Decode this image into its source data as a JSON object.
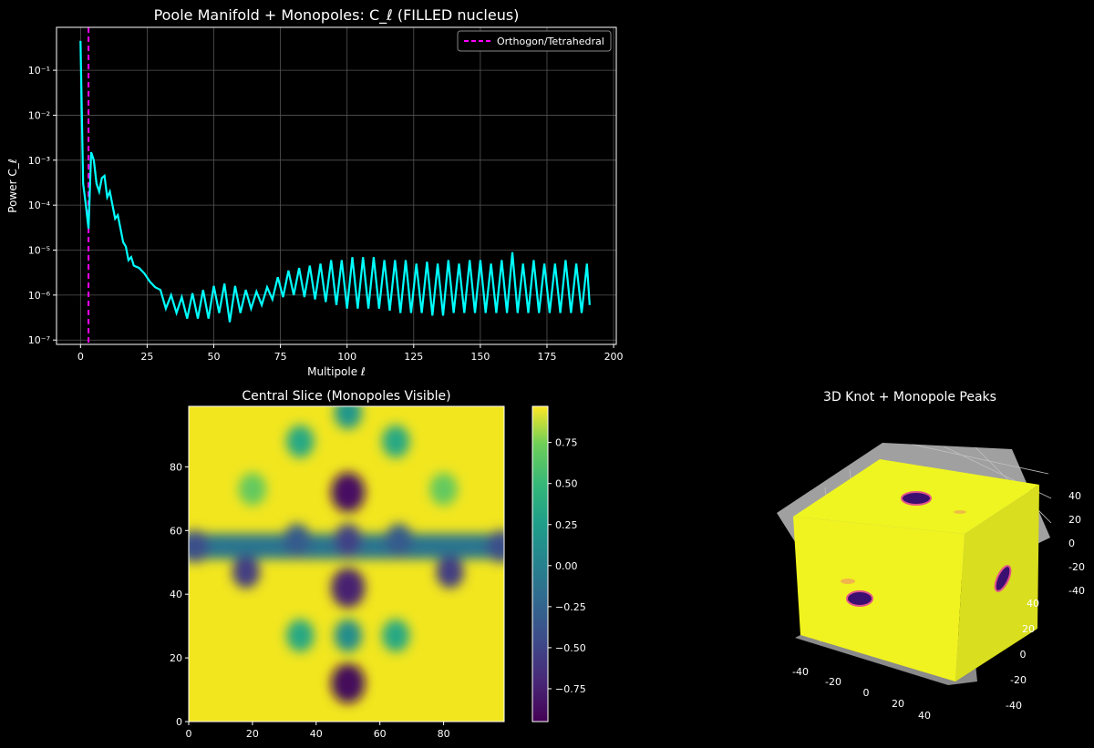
{
  "chart_data": [
    {
      "type": "line",
      "title": "Poole Manifold + Monopoles: C_ℓ   (FILLED nucleus)",
      "xlabel": "Multipole ℓ",
      "ylabel": "Power C_ℓ",
      "yscale": "log",
      "xlim": [
        -9,
        201
      ],
      "ylim": [
        8e-08,
        0.9
      ],
      "xticks": [
        0,
        25,
        50,
        75,
        100,
        125,
        150,
        175,
        200
      ],
      "yticks": [
        1e-07,
        1e-06,
        1e-05,
        0.0001,
        0.001,
        0.01,
        0.1
      ],
      "ytick_labels": [
        "10⁻⁷",
        "10⁻⁶",
        "10⁻⁵",
        "10⁻⁴",
        "10⁻³",
        "10⁻²",
        "10⁻¹"
      ],
      "grid": true,
      "legend": {
        "position": "upper-right",
        "entries": [
          "Orthogon/Tetrahedral"
        ]
      },
      "series": [
        {
          "color": "#00ffff",
          "x": [
            0,
            1,
            2,
            3,
            4,
            5,
            6,
            7,
            8,
            9,
            10,
            11,
            12,
            13,
            14,
            15,
            16,
            17,
            18,
            19,
            20,
            22,
            24,
            26,
            28,
            30,
            32,
            34,
            36,
            38,
            40,
            42,
            44,
            46,
            48,
            50,
            52,
            54,
            56,
            58,
            60,
            62,
            64,
            66,
            68,
            70,
            72,
            74,
            76,
            78,
            80,
            82,
            84,
            86,
            88,
            90,
            92,
            94,
            96,
            98,
            100,
            102,
            104,
            106,
            108,
            110,
            112,
            114,
            116,
            118,
            120,
            122,
            124,
            126,
            128,
            130,
            132,
            134,
            136,
            138,
            140,
            142,
            144,
            146,
            148,
            150,
            152,
            154,
            156,
            158,
            160,
            162,
            164,
            166,
            168,
            170,
            172,
            174,
            176,
            178,
            180,
            182,
            184,
            186,
            188,
            190,
            191
          ],
          "y": [
            0.45,
            0.0003,
            0.0001,
            3e-05,
            0.0015,
            0.001,
            0.0003,
            0.0002,
            0.0004,
            0.00045,
            0.00015,
            0.0002,
            0.0001,
            5e-05,
            6e-05,
            3e-05,
            1.5e-05,
            1.2e-05,
            6e-06,
            7e-06,
            4.5e-06,
            4e-06,
            3e-06,
            2e-06,
            1.5e-06,
            1.3e-06,
            5e-07,
            1e-06,
            4e-07,
            9e-07,
            3e-07,
            1.1e-06,
            3e-07,
            1.3e-06,
            3e-07,
            1.6e-06,
            4e-07,
            1.8e-06,
            2.5e-07,
            1.6e-06,
            4e-07,
            1.3e-06,
            5e-07,
            1.2e-06,
            6e-07,
            1.5e-06,
            8e-07,
            2.5e-06,
            9e-07,
            3.5e-06,
            1e-06,
            4e-06,
            9e-07,
            4.5e-06,
            8e-07,
            5e-06,
            7e-07,
            6e-06,
            6e-07,
            6e-06,
            5e-07,
            7e-06,
            5e-07,
            7e-06,
            5e-07,
            7e-06,
            5e-07,
            6e-06,
            4.5e-07,
            6e-06,
            4e-07,
            6e-06,
            4e-07,
            5e-06,
            4e-07,
            5.5e-06,
            3.5e-07,
            5e-06,
            3.5e-07,
            6e-06,
            4e-07,
            5e-06,
            4e-07,
            6e-06,
            4e-07,
            6e-06,
            4e-07,
            5e-06,
            4e-07,
            6e-06,
            4e-07,
            9e-06,
            4e-07,
            5e-06,
            4e-07,
            6e-06,
            4e-07,
            5e-06,
            4e-07,
            5e-06,
            4e-07,
            6e-06,
            4e-07,
            5e-06,
            4e-07,
            5e-06,
            6e-07
          ]
        }
      ],
      "vline": {
        "x": 3,
        "color": "#ff00ff",
        "label": "Orthogon/Tetrahedral"
      }
    },
    {
      "type": "heatmap",
      "title": "Central Slice (Monopoles Visible)",
      "xlim": [
        0,
        99
      ],
      "ylim": [
        0,
        99
      ],
      "xticks": [
        0,
        20,
        40,
        60,
        80
      ],
      "yticks": [
        0,
        20,
        40,
        60,
        80
      ],
      "colormap": "viridis",
      "vmin": -0.95,
      "vmax": 0.97,
      "colorbar_ticks": [
        0.75,
        0.5,
        0.25,
        0.0,
        -0.25,
        -0.5,
        -0.75
      ],
      "colorbar_labels": [
        "0.75",
        "0.50",
        "0.25",
        "0.00",
        "−0.25",
        "−0.50",
        "−0.75"
      ],
      "background_value": 0.93,
      "band": {
        "y_center": 55,
        "half_width": 4,
        "value": -0.1
      },
      "features": [
        {
          "x": 50,
          "y": 72,
          "value": -0.85
        },
        {
          "x": 50,
          "y": 42,
          "value": -0.75
        },
        {
          "x": 50,
          "y": 12,
          "value": -0.9
        },
        {
          "x": 50,
          "y": 97,
          "value": 0.2
        },
        {
          "x": 50,
          "y": 57,
          "value": -0.5
        },
        {
          "x": 50,
          "y": 27,
          "value": 0.1
        },
        {
          "x": 18,
          "y": 47,
          "value": -0.55
        },
        {
          "x": 82,
          "y": 47,
          "value": -0.55
        },
        {
          "x": 2,
          "y": 55,
          "value": -0.4
        },
        {
          "x": 34,
          "y": 57,
          "value": -0.3
        },
        {
          "x": 66,
          "y": 57,
          "value": -0.3
        },
        {
          "x": 98,
          "y": 55,
          "value": -0.4
        },
        {
          "x": 35,
          "y": 88,
          "value": 0.35
        },
        {
          "x": 65,
          "y": 88,
          "value": 0.35
        },
        {
          "x": 35,
          "y": 27,
          "value": 0.35
        },
        {
          "x": 65,
          "y": 27,
          "value": 0.35
        },
        {
          "x": 20,
          "y": 73,
          "value": 0.7
        },
        {
          "x": 80,
          "y": 73,
          "value": 0.7
        }
      ]
    },
    {
      "type": "scatter",
      "subtype": "3d-surface",
      "title": "3D Knot + Monopole Peaks",
      "xticks": [
        -40,
        -20,
        0,
        20,
        40
      ],
      "yticks": [
        -40,
        -20,
        0,
        20,
        40
      ],
      "zticks": [
        -40,
        -20,
        0,
        20,
        40
      ],
      "cube_color": "#eef520",
      "blob_color": "#3b0f70",
      "blobs": [
        {
          "face": "top",
          "label": "peak-1"
        },
        {
          "face": "front",
          "label": "peak-2"
        },
        {
          "face": "side",
          "label": "peak-3"
        }
      ]
    }
  ]
}
